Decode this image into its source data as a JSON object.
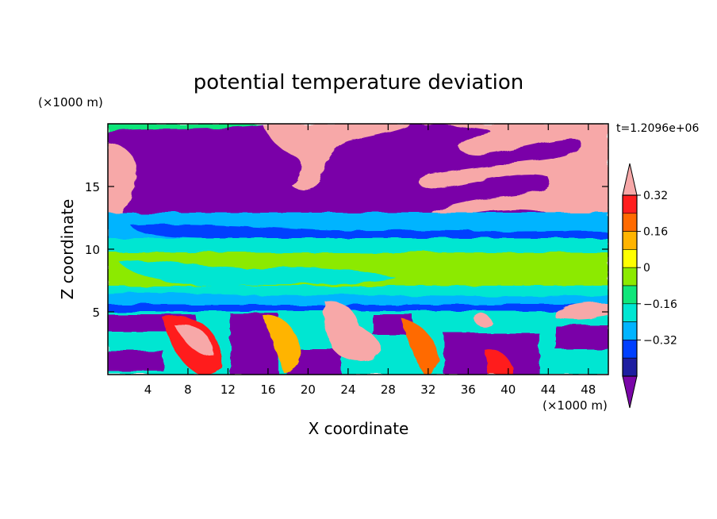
{
  "chart_data": {
    "type": "heatmap",
    "title": "potential temperature deviation",
    "xlabel": "X coordinate",
    "ylabel": "Z coordinate",
    "x_unit": "(×1000 m)",
    "y_unit": "(×1000 m)",
    "time_label": "t=1.2096e+06",
    "xlim": [
      0,
      50
    ],
    "ylim": [
      0,
      20
    ],
    "x_ticks": [
      "4",
      "8",
      "12",
      "16",
      "20",
      "24",
      "28",
      "32",
      "36",
      "40",
      "44",
      "48"
    ],
    "y_ticks": [
      "5",
      "10",
      "15"
    ],
    "colorbar": {
      "levels": [
        -0.4,
        -0.32,
        -0.24,
        -0.16,
        -0.08,
        0,
        0.08,
        0.16,
        0.24,
        0.32,
        0.4
      ],
      "tick_labels": [
        "0.32",
        "0.16",
        "0",
        "−0.16",
        "−0.32"
      ],
      "colors": [
        "#7a06a8",
        "#1e1ea0",
        "#0040ff",
        "#00b4ff",
        "#00e6d2",
        "#10e67a",
        "#8cea00",
        "#ffff00",
        "#ffb400",
        "#ff6a00",
        "#ff1e1e",
        "#f7a8a8"
      ]
    },
    "field_summary": [
      {
        "region": "z 13-20 km, most of domain",
        "value": "< -0.40"
      },
      {
        "region": "z 13-20 km, upper right and left edge",
        "value": "> 0.40"
      },
      {
        "region": "z 11-13 km band",
        "value": "-0.16 to 0"
      },
      {
        "region": "z 7.5-11 km",
        "value": "-0.08 to 0.08"
      },
      {
        "region": "z 5-7.5 km",
        "value": "-0.16 to 0"
      },
      {
        "region": "z 0-5 km",
        "value": "mixed, -0.40 to > 0.40"
      }
    ]
  }
}
